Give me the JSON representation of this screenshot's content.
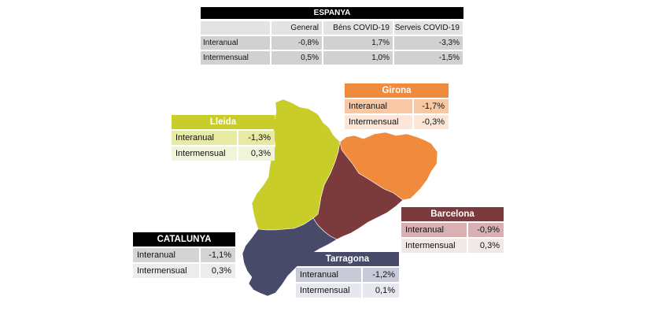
{
  "spain": {
    "title": "ESPANYA",
    "headers": [
      "General",
      "Béns COVID-19",
      "Serveis COVID-19"
    ],
    "rows": [
      {
        "label": "Interanual",
        "values": [
          "-0,8%",
          "1,7%",
          "-3,3%"
        ]
      },
      {
        "label": "Intermensual",
        "values": [
          "0,5%",
          "1,0%",
          "-1,5%"
        ]
      }
    ]
  },
  "regions": {
    "girona": {
      "name": "Girona",
      "interanual_label": "Interanual",
      "interanual": "-1,7%",
      "intermensual_label": "Intermensual",
      "intermensual": "-0,3%",
      "color": "#f08a3c"
    },
    "lleida": {
      "name": "Lleida",
      "interanual_label": "Interanual",
      "interanual": "-1,3%",
      "intermensual_label": "Intermensual",
      "intermensual": "0,3%",
      "color": "#c9cd2a"
    },
    "barcelona": {
      "name": "Barcelona",
      "interanual_label": "Interanual",
      "interanual": "-0,9%",
      "intermensual_label": "Intermensual",
      "intermensual": "0,3%",
      "color": "#7b3b3d"
    },
    "tarragona": {
      "name": "Tarragona",
      "interanual_label": "Interanual",
      "interanual": "-1,2%",
      "intermensual_label": "Intermensual",
      "intermensual": "0,1%",
      "color": "#474a69"
    },
    "catalunya": {
      "name": "CATALUNYA",
      "interanual_label": "Interanual",
      "interanual": "-1,1%",
      "intermensual_label": "Intermensual",
      "intermensual": "0,3%",
      "color": "#000000"
    }
  }
}
